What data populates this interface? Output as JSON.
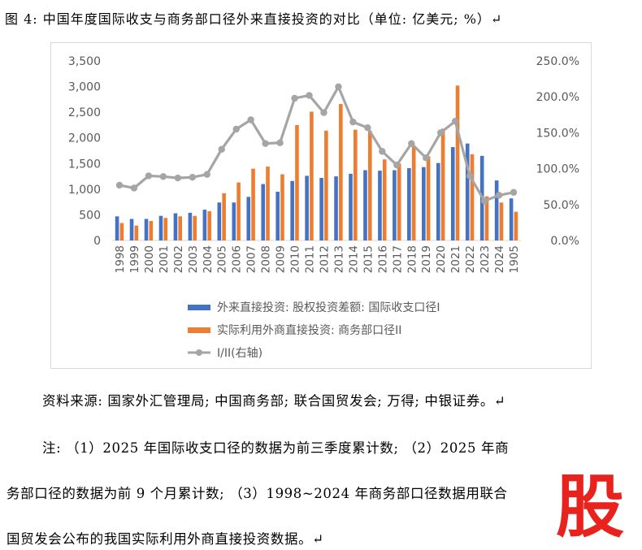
{
  "title": "图 4: 中国年度国际收支与商务部口径外来直接投资的对比（单位: 亿美元; %）↵",
  "source_line": "资料来源: 国家外汇管理局; 中国商务部; 联合国贸发会; 万得; 中银证券。↵",
  "note_lines": [
    "注: （1）2025 年国际收支口径的数据为前三季度累计数; （2）2025 年商",
    "务部口径的数据为前 9 个月累计数; （3）1998~2024 年商务部口径数据用联合",
    "国贸发会公布的我国实际利用外商直接投资数据。↵"
  ],
  "watermark": "股",
  "chart_data": {
    "type": "bar+line",
    "categories": [
      "1998",
      "1999",
      "2000",
      "2001",
      "2002",
      "2003",
      "2004",
      "2005",
      "2006",
      "2007",
      "2008",
      "2009",
      "2010",
      "2011",
      "2012",
      "2013",
      "2014",
      "2015",
      "2016",
      "2017",
      "2018",
      "2019",
      "2020",
      "2021",
      "2022",
      "2023",
      "2024",
      "1905"
    ],
    "series": [
      {
        "name": "外来直接投资: 股权投资差额: 国际收支口径I",
        "axis": "left",
        "kind": "bar",
        "color": "#4472C4",
        "values": [
          470,
          420,
          420,
          480,
          530,
          540,
          600,
          740,
          740,
          850,
          1100,
          950,
          1160,
          1260,
          1220,
          1250,
          1300,
          1370,
          1360,
          1370,
          1410,
          1430,
          1510,
          1820,
          1890,
          1650,
          1170,
          820
        ]
      },
      {
        "name": "实际利用外商直接投资: 商务部口径II",
        "axis": "left",
        "kind": "bar",
        "color": "#ED7D31",
        "values": [
          340,
          290,
          380,
          440,
          470,
          480,
          570,
          920,
          1130,
          1400,
          1440,
          1290,
          2250,
          2510,
          2140,
          2660,
          2160,
          2140,
          1580,
          1500,
          1830,
          1640,
          2180,
          3020,
          1680,
          860,
          740,
          560
        ]
      },
      {
        "name": "I/II(右轴)",
        "axis": "right",
        "kind": "line",
        "color": "#A5A5A5",
        "values": [
          77,
          73,
          90,
          89,
          87,
          88,
          92,
          127,
          155,
          168,
          135,
          136,
          198,
          202,
          178,
          214,
          165,
          157,
          124,
          105,
          135,
          115,
          150,
          166,
          90,
          55,
          63,
          67
        ]
      }
    ],
    "y_left": {
      "min": 0,
      "max": 3500,
      "ticks": [
        "0",
        "500",
        "1,000",
        "1,500",
        "2,000",
        "2,500",
        "3,000",
        "3,500"
      ]
    },
    "y_right": {
      "min": 0,
      "max": 250,
      "ticks": [
        "0.0%",
        "50.0%",
        "100.0%",
        "150.0%",
        "200.0%",
        "250.0%"
      ]
    },
    "legend_position": "bottom",
    "grid": false
  }
}
